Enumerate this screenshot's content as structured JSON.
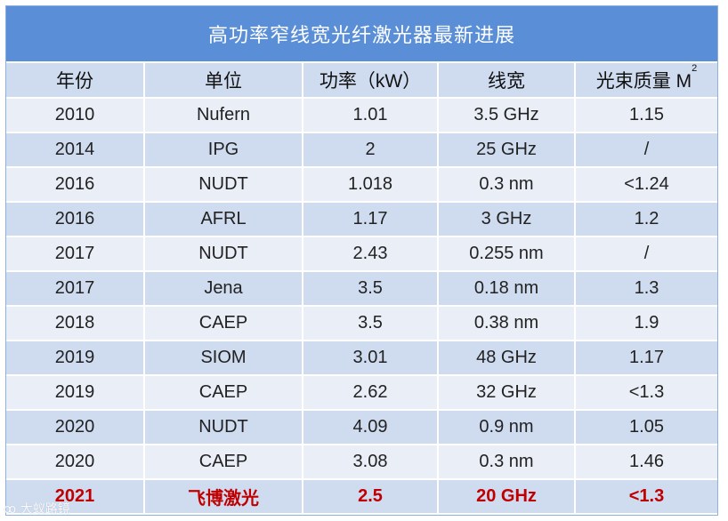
{
  "title": "高功率窄线宽光纤激光器最新进展",
  "columns": [
    "年份",
    "单位",
    "功率（kW）",
    "线宽",
    "光束质量 M"
  ],
  "column_superscript": "2",
  "rows": [
    [
      "2010",
      "Nufern",
      "1.01",
      "3.5 GHz",
      "1.15"
    ],
    [
      "2014",
      "IPG",
      "2",
      "25 GHz",
      "/"
    ],
    [
      "2016",
      "NUDT",
      "1.018",
      "0.3 nm",
      "<1.24"
    ],
    [
      "2016",
      "AFRL",
      "1.17",
      "3 GHz",
      "1.2"
    ],
    [
      "2017",
      "NUDT",
      "2.43",
      "0.255 nm",
      "/"
    ],
    [
      "2017",
      "Jena",
      "3.5",
      "0.18 nm",
      "1.3"
    ],
    [
      "2018",
      "CAEP",
      "3.5",
      "0.38 nm",
      "1.9"
    ],
    [
      "2019",
      "SIOM",
      "3.01",
      "48 GHz",
      "1.17"
    ],
    [
      "2019",
      "CAEP",
      "2.62",
      "32 GHz",
      "<1.3"
    ],
    [
      "2020",
      "NUDT",
      "4.09",
      "0.9 nm",
      "1.05"
    ],
    [
      "2020",
      "CAEP",
      "3.08",
      "0.3 nm",
      "1.46"
    ]
  ],
  "highlight_row": [
    "2021",
    "飞博激光",
    "2.5",
    "20 GHz",
    "<1.3"
  ],
  "highlight_color": "#c00000",
  "header_color": "#5a8fd8",
  "watermark": "大蚁路镜"
}
